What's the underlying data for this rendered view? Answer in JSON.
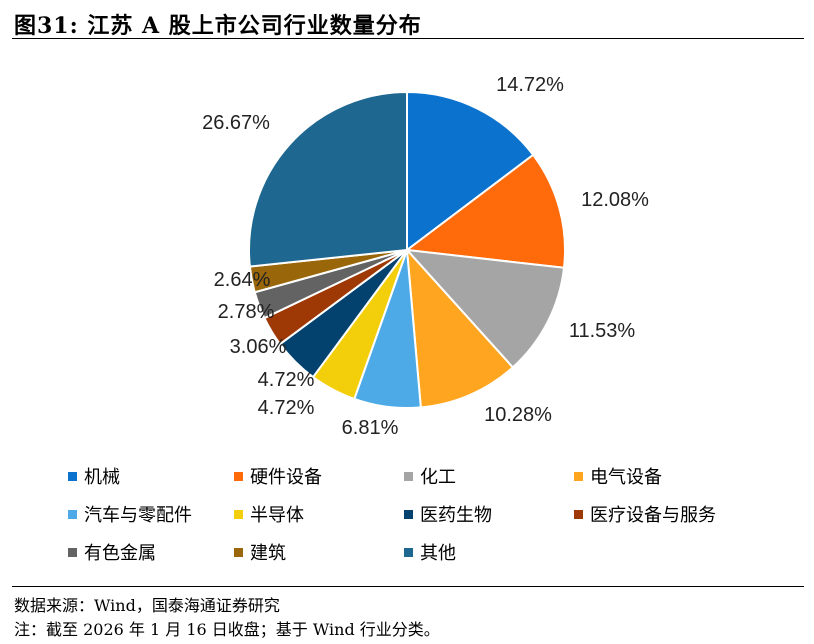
{
  "header": {
    "title": "图31:  江苏 A 股上市公司行业数量分布"
  },
  "chart_data": {
    "type": "pie",
    "title": "",
    "categories": [
      "机械",
      "硬件设备",
      "化工",
      "电气设备",
      "汽车与零配件",
      "半导体",
      "医药生物",
      "医疗设备与服务",
      "有色金属",
      "建筑",
      "其他"
    ],
    "values": [
      14.72,
      12.08,
      11.53,
      10.28,
      6.81,
      4.72,
      4.72,
      3.06,
      2.78,
      2.64,
      26.67
    ],
    "labels": [
      "14.72%",
      "12.08%",
      "11.53%",
      "10.28%",
      "6.81%",
      "4.72%",
      "4.72%",
      "3.06%",
      "2.78%",
      "2.64%",
      "26.67%"
    ],
    "colors": [
      "#0B73CE",
      "#FF6A0A",
      "#A5A5A5",
      "#FFA51F",
      "#4DAAE6",
      "#F3CF0B",
      "#03426E",
      "#9E3906",
      "#636363",
      "#99660A",
      "#1E6790"
    ],
    "start_angle": "12 o'clock",
    "direction": "clockwise",
    "legend_position": "bottom"
  },
  "footer": {
    "source": "数据来源：Wind，国泰海通证券研究",
    "note": "注：截至 2026 年 1 月 16 日收盘；基于 Wind 行业分类。"
  }
}
